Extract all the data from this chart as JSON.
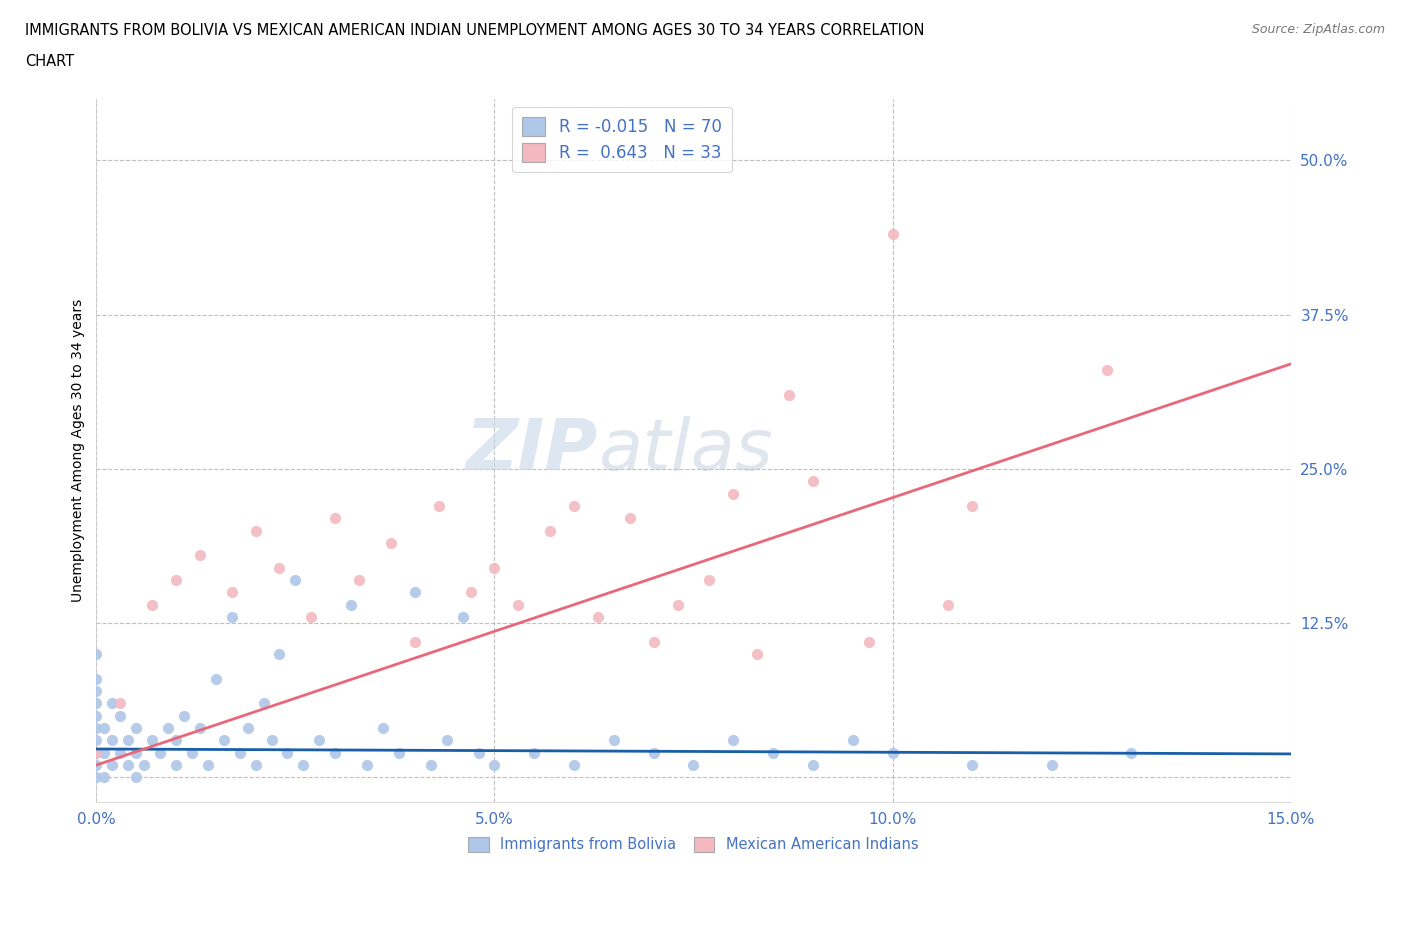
{
  "title_line1": "IMMIGRANTS FROM BOLIVIA VS MEXICAN AMERICAN INDIAN UNEMPLOYMENT AMONG AGES 30 TO 34 YEARS CORRELATION",
  "title_line2": "CHART",
  "source": "Source: ZipAtlas.com",
  "ylabel": "Unemployment Among Ages 30 to 34 years",
  "xlim": [
    0.0,
    0.15
  ],
  "ylim": [
    -0.02,
    0.55
  ],
  "xticks": [
    0.0,
    0.05,
    0.1,
    0.15
  ],
  "xticklabels": [
    "0.0%",
    "5.0%",
    "10.0%",
    "15.0%"
  ],
  "yticks": [
    0.0,
    0.125,
    0.25,
    0.375,
    0.5
  ],
  "yticklabels": [
    "",
    "12.5%",
    "25.0%",
    "37.5%",
    "50.0%"
  ],
  "bolivia_color": "#aec6e8",
  "mexico_color": "#f4b8c1",
  "bolivia_line_color": "#1a5ea8",
  "mexico_line_color": "#e8687a",
  "grid_color": "#c0c0c0",
  "watermark_zip": "ZIP",
  "watermark_atlas": "atlas",
  "R_bolivia": -0.015,
  "N_bolivia": 70,
  "R_mexico": 0.643,
  "N_mexico": 33,
  "bolivia_x": [
    0.0,
    0.0,
    0.0,
    0.0,
    0.0,
    0.0,
    0.0,
    0.0,
    0.0,
    0.0,
    0.001,
    0.001,
    0.001,
    0.002,
    0.002,
    0.002,
    0.003,
    0.003,
    0.004,
    0.004,
    0.005,
    0.005,
    0.005,
    0.006,
    0.007,
    0.008,
    0.009,
    0.01,
    0.01,
    0.011,
    0.012,
    0.013,
    0.014,
    0.015,
    0.016,
    0.017,
    0.018,
    0.019,
    0.02,
    0.021,
    0.022,
    0.023,
    0.024,
    0.025,
    0.026,
    0.028,
    0.03,
    0.032,
    0.034,
    0.036,
    0.038,
    0.04,
    0.042,
    0.044,
    0.046,
    0.048,
    0.05,
    0.055,
    0.06,
    0.065,
    0.07,
    0.075,
    0.08,
    0.085,
    0.09,
    0.095,
    0.1,
    0.11,
    0.12,
    0.13
  ],
  "bolivia_y": [
    0.0,
    0.01,
    0.02,
    0.03,
    0.04,
    0.05,
    0.06,
    0.07,
    0.08,
    0.1,
    0.0,
    0.02,
    0.04,
    0.01,
    0.03,
    0.06,
    0.02,
    0.05,
    0.01,
    0.03,
    0.0,
    0.02,
    0.04,
    0.01,
    0.03,
    0.02,
    0.04,
    0.01,
    0.03,
    0.05,
    0.02,
    0.04,
    0.01,
    0.08,
    0.03,
    0.13,
    0.02,
    0.04,
    0.01,
    0.06,
    0.03,
    0.1,
    0.02,
    0.16,
    0.01,
    0.03,
    0.02,
    0.14,
    0.01,
    0.04,
    0.02,
    0.15,
    0.01,
    0.03,
    0.13,
    0.02,
    0.01,
    0.02,
    0.01,
    0.03,
    0.02,
    0.01,
    0.03,
    0.02,
    0.01,
    0.03,
    0.02,
    0.01,
    0.01,
    0.02
  ],
  "mexico_x": [
    0.0,
    0.003,
    0.007,
    0.01,
    0.013,
    0.017,
    0.02,
    0.023,
    0.027,
    0.03,
    0.033,
    0.037,
    0.04,
    0.043,
    0.047,
    0.05,
    0.053,
    0.057,
    0.06,
    0.063,
    0.067,
    0.07,
    0.073,
    0.077,
    0.08,
    0.083,
    0.087,
    0.09,
    0.097,
    0.1,
    0.107,
    0.11,
    0.127
  ],
  "mexico_y": [
    0.02,
    0.06,
    0.14,
    0.16,
    0.18,
    0.15,
    0.2,
    0.17,
    0.13,
    0.21,
    0.16,
    0.19,
    0.11,
    0.22,
    0.15,
    0.17,
    0.14,
    0.2,
    0.22,
    0.13,
    0.21,
    0.11,
    0.14,
    0.16,
    0.23,
    0.1,
    0.31,
    0.24,
    0.11,
    0.44,
    0.14,
    0.22,
    0.33
  ],
  "bolivia_line_x": [
    0.0,
    0.15
  ],
  "bolivia_line_y": [
    0.023,
    0.019
  ],
  "mexico_line_x": [
    0.0,
    0.15
  ],
  "mexico_line_y": [
    0.01,
    0.335
  ]
}
